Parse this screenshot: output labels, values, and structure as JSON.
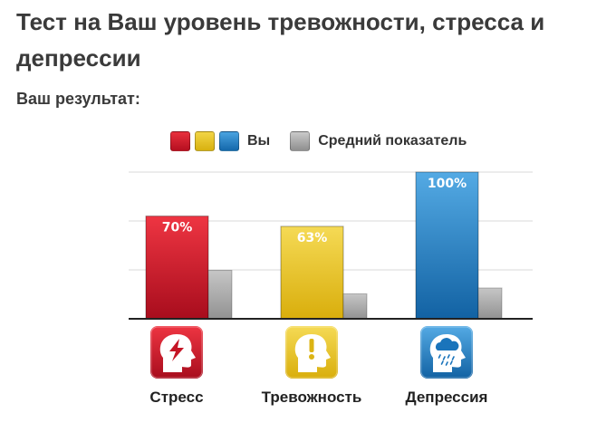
{
  "page": {
    "title": "Тест на Ваш уровень тревожности, стресса и депрессии",
    "subtitle": "Ваш результат:"
  },
  "legend": {
    "you_label": "Вы",
    "average_label": "Средний показатель"
  },
  "colors": {
    "stress": "#d11a2a",
    "anxiety": "#e7c21e",
    "depression": "#1e82c8",
    "average": "#a5a5a5"
  },
  "chart_data": {
    "type": "bar",
    "categories": [
      "Стресс",
      "Тревожность",
      "Депрессия"
    ],
    "category_icons": [
      "head-lightning-icon",
      "head-exclamation-icon",
      "head-raincloud-icon"
    ],
    "series": [
      {
        "name": "Вы",
        "values": [
          70,
          63,
          100
        ],
        "labels": [
          "70%",
          "63%",
          "100%"
        ]
      },
      {
        "name": "Средний показатель",
        "values": [
          33,
          17,
          21
        ]
      }
    ],
    "ylim": [
      0,
      100
    ],
    "grid": true,
    "legend_position": "top"
  }
}
